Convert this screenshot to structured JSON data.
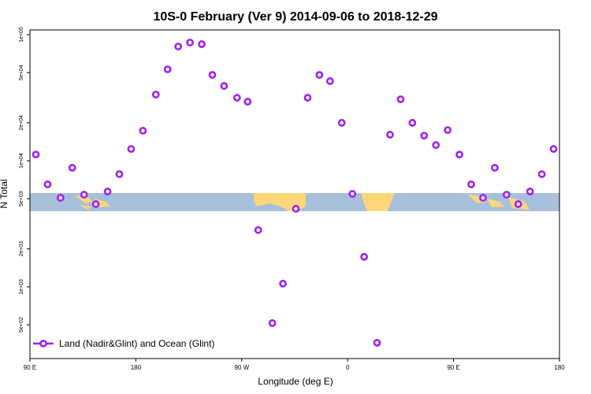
{
  "chart_data": {
    "type": "scatter",
    "title": "10S-0 February (Ver 9)   2014-09-06 to 2018-12-29",
    "x_label": "Longitude (deg E)",
    "y_label": "N Total",
    "log_y": true,
    "legend": "bottom-left",
    "xlim": [
      90,
      540
    ],
    "ylim": [
      270,
      109000
    ],
    "xticks": [
      {
        "value": 90,
        "label": "90 E"
      },
      180,
      {
        "value": 270,
        "label": "90 W"
      },
      {
        "value": 360,
        "label": "0"
      },
      {
        "value": 450,
        "label": "90 E"
      },
      {
        "value": 540,
        "label": "180"
      }
    ],
    "yticks": [
      {
        "value": 500,
        "label": "5e+02"
      },
      {
        "value": 1000,
        "label": "1e+03"
      },
      {
        "value": 2000,
        "label": "2e+03"
      },
      {
        "value": 5000,
        "label": "5e+03"
      },
      {
        "value": 10000,
        "label": "1e+04"
      },
      {
        "value": 20000,
        "label": "2e+04"
      },
      {
        "value": 50000,
        "label": "5e+04"
      },
      {
        "value": 100000,
        "label": "1e+05"
      }
    ],
    "series": [
      {
        "name": "Land (Nadir&Glint) and Ocean (Glint)",
        "color": "#a020f0",
        "x": [
          95,
          105,
          116,
          126,
          136,
          146,
          156,
          166,
          176,
          186,
          197,
          207,
          216,
          226,
          236,
          245,
          255,
          266,
          275,
          284,
          296,
          305,
          316,
          326,
          336,
          345,
          355,
          364,
          374,
          385,
          396,
          405,
          415,
          425,
          435,
          445,
          455,
          465,
          475,
          485,
          495,
          505,
          515,
          525,
          535
        ],
        "values": [
          11200,
          6500,
          5080,
          8800,
          5380,
          4530,
          5700,
          7830,
          12400,
          17300,
          33500,
          53100,
          80600,
          86600,
          84100,
          48000,
          39200,
          31600,
          29400,
          2820,
          516,
          1060,
          4160,
          31600,
          48000,
          42800,
          20000,
          5460,
          1730,
          360,
          16100,
          30700,
          20000,
          15800,
          13300,
          17500,
          11200,
          6500,
          5080,
          8800,
          5380,
          4530,
          5700,
          7830,
          12400
        ]
      }
    ]
  }
}
